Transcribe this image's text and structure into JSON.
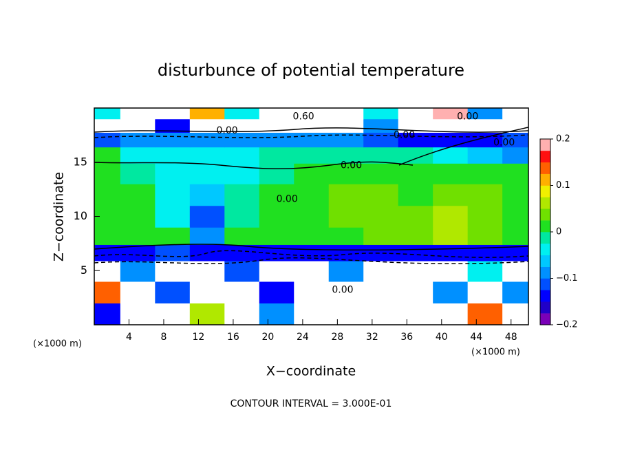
{
  "chart_data": {
    "type": "contour",
    "title": "disturbunce of potential temperature",
    "x_label": "X−coordinate",
    "y_label": "Z−coordinate",
    "x_unit": "(×1000 m)",
    "x_unit_right": "(×1000 m)",
    "footer": "CONTOUR INTERVAL = 3.000E-01",
    "xlim": [
      0,
      50
    ],
    "ylim": [
      0,
      20
    ],
    "xticks": [
      4,
      8,
      12,
      16,
      20,
      24,
      28,
      32,
      36,
      40,
      44,
      48
    ],
    "yticks": [
      5,
      10,
      15
    ],
    "clim": [
      -0.2,
      0.2
    ],
    "cticks": [
      {
        "value": -0.2,
        "label": "−0.2"
      },
      {
        "value": -0.1,
        "label": "−0.1"
      },
      0,
      0.1,
      0.2
    ],
    "colors": [
      "#7a00b8",
      "#2000c8",
      "#0000ff",
      "#0050ff",
      "#0090ff",
      "#00c8ff",
      "#00f0f0",
      "#00e8a0",
      "#20e020",
      "#70e000",
      "#b0e800",
      "#f0f000",
      "#ffb000",
      "#ff6000",
      "#ff1010",
      "#ffb0b0"
    ],
    "outside_color": "#ffffff",
    "x": [
      1,
      5,
      9,
      13,
      17,
      21,
      25,
      29,
      33,
      37,
      41,
      45,
      49
    ],
    "y": [
      1,
      3,
      5,
      6.8,
      8,
      10,
      12,
      14,
      15.8,
      17,
      18.5,
      19.5
    ],
    "z": [
      [
        -0.15,
        0.3,
        -0.3,
        0.05,
        0.3,
        -0.1,
        0.3,
        -0.3,
        0.3,
        -0.25,
        0.3,
        0.15,
        0.3
      ],
      [
        0.15,
        0.3,
        -0.12,
        -0.3,
        0.3,
        -0.15,
        -0.3,
        0.3,
        -0.3,
        0.3,
        -0.1,
        0.3,
        -0.08
      ],
      [
        -0.3,
        -0.1,
        0.3,
        0.3,
        -0.12,
        0.3,
        0.3,
        -0.1,
        0.3,
        0.3,
        0.3,
        -0.05,
        0.3
      ],
      [
        -0.15,
        -0.15,
        -0.12,
        -0.15,
        -0.15,
        -0.15,
        -0.15,
        -0.15,
        -0.15,
        -0.15,
        -0.15,
        -0.15,
        -0.15
      ],
      [
        0.02,
        0.02,
        0.0,
        -0.1,
        0.01,
        0.02,
        0.02,
        0.02,
        0.03,
        0.03,
        0.05,
        0.03,
        0.02
      ],
      [
        0.02,
        0.01,
        -0.03,
        -0.12,
        -0.02,
        0.01,
        0.02,
        0.03,
        0.04,
        0.03,
        0.06,
        0.03,
        0.02
      ],
      [
        0.01,
        0.0,
        -0.05,
        -0.07,
        -0.02,
        0.0,
        0.02,
        0.03,
        0.03,
        0.02,
        0.03,
        0.03,
        0.02
      ],
      [
        0.0,
        -0.02,
        -0.04,
        -0.05,
        -0.03,
        -0.01,
        0.0,
        0.02,
        0.01,
        0.01,
        0.02,
        0.01,
        0.01
      ],
      [
        0.0,
        -0.03,
        -0.04,
        -0.04,
        -0.03,
        -0.02,
        -0.02,
        -0.02,
        -0.02,
        -0.02,
        -0.03,
        -0.06,
        -0.08
      ],
      [
        -0.12,
        -0.1,
        -0.1,
        -0.1,
        -0.1,
        -0.1,
        -0.1,
        -0.1,
        -0.12,
        -0.15,
        -0.15,
        -0.15,
        -0.12
      ],
      [
        0.3,
        0.3,
        -0.15,
        0.3,
        0.3,
        0.3,
        0.3,
        0.3,
        -0.1,
        0.3,
        0.3,
        0.3,
        0.3
      ],
      [
        -0.05,
        0.3,
        0.3,
        0.1,
        -0.05,
        0.3,
        0.3,
        0.3,
        -0.05,
        0.3,
        0.2,
        -0.1,
        0.3
      ]
    ],
    "contour_labels": [
      {
        "text": "0.00",
        "x": 29.6,
        "y": 14.7
      },
      {
        "text": "0.00",
        "x": 22.2,
        "y": 11.6
      },
      {
        "text": "0.00",
        "x": 28.6,
        "y": 3.2
      },
      {
        "text": "0.60",
        "x": 24.1,
        "y": 19.2
      },
      {
        "text": "0.00",
        "x": 15.3,
        "y": 17.9
      },
      {
        "text": "0.00",
        "x": 35.7,
        "y": 17.5
      },
      {
        "text": "0.00",
        "x": 43.0,
        "y": 19.2
      },
      {
        "text": "0.00",
        "x": 47.2,
        "y": 16.8
      }
    ]
  }
}
